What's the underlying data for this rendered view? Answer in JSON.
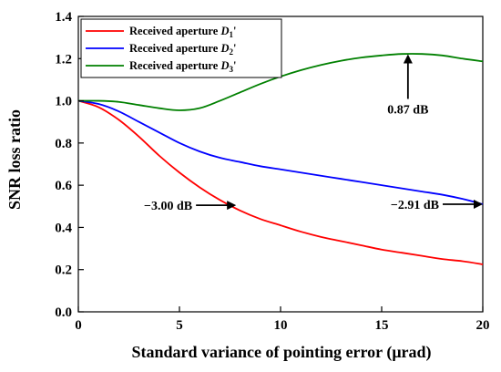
{
  "chart_data": {
    "type": "line",
    "xlabel": "Standard variance of pointing error (μrad)",
    "ylabel": "SNR loss ratio",
    "xlim": [
      0,
      20
    ],
    "ylim": [
      0,
      1.4
    ],
    "xticks": [
      0,
      5,
      10,
      15,
      20
    ],
    "yticks": [
      0.0,
      0.2,
      0.4,
      0.6,
      0.8,
      1.0,
      1.2,
      1.4
    ],
    "xtick_labels": [
      "0",
      "5",
      "10",
      "15",
      "20"
    ],
    "ytick_labels": [
      "0.0",
      "0.2",
      "0.4",
      "0.6",
      "0.8",
      "1.0",
      "1.2",
      "1.4"
    ],
    "grid": false,
    "legend_position": "top-left",
    "x": [
      0,
      1,
      2,
      3,
      4,
      5,
      6,
      7,
      8,
      9,
      10,
      11,
      12,
      13,
      14,
      15,
      16,
      17,
      18,
      19,
      20
    ],
    "series": [
      {
        "name_prefix": "Received aperture ",
        "name_var": "D",
        "name_sub": "1",
        "name_suffix": "'",
        "color": "#ff0000",
        "values": [
          1.0,
          0.97,
          0.91,
          0.83,
          0.74,
          0.66,
          0.59,
          0.53,
          0.48,
          0.44,
          0.41,
          0.38,
          0.355,
          0.335,
          0.315,
          0.295,
          0.28,
          0.265,
          0.25,
          0.24,
          0.225
        ]
      },
      {
        "name_prefix": "Received aperture ",
        "name_var": "D",
        "name_sub": "2",
        "name_suffix": "'",
        "color": "#0000ff",
        "values": [
          1.0,
          0.985,
          0.95,
          0.9,
          0.85,
          0.8,
          0.76,
          0.73,
          0.71,
          0.69,
          0.675,
          0.66,
          0.645,
          0.63,
          0.615,
          0.6,
          0.585,
          0.57,
          0.555,
          0.535,
          0.51
        ]
      },
      {
        "name_prefix": "Received aperture ",
        "name_var": "D",
        "name_sub": "3",
        "name_suffix": "'",
        "color": "#008000",
        "values": [
          1.0,
          1.0,
          0.995,
          0.98,
          0.965,
          0.955,
          0.965,
          1.0,
          1.04,
          1.08,
          1.115,
          1.145,
          1.17,
          1.19,
          1.205,
          1.215,
          1.222,
          1.222,
          1.215,
          1.2,
          1.187
        ]
      }
    ],
    "annotations": [
      {
        "text": "0.87 dB",
        "arrow_x": 16.3,
        "arrow_y": 1.225,
        "direction": "up"
      },
      {
        "text": "−3.00 dB",
        "arrow_x": 7.8,
        "arrow_y": 0.505,
        "direction": "right"
      },
      {
        "text": "−2.91 dB",
        "arrow_x": 20,
        "arrow_y": 0.51,
        "direction": "right"
      }
    ]
  }
}
